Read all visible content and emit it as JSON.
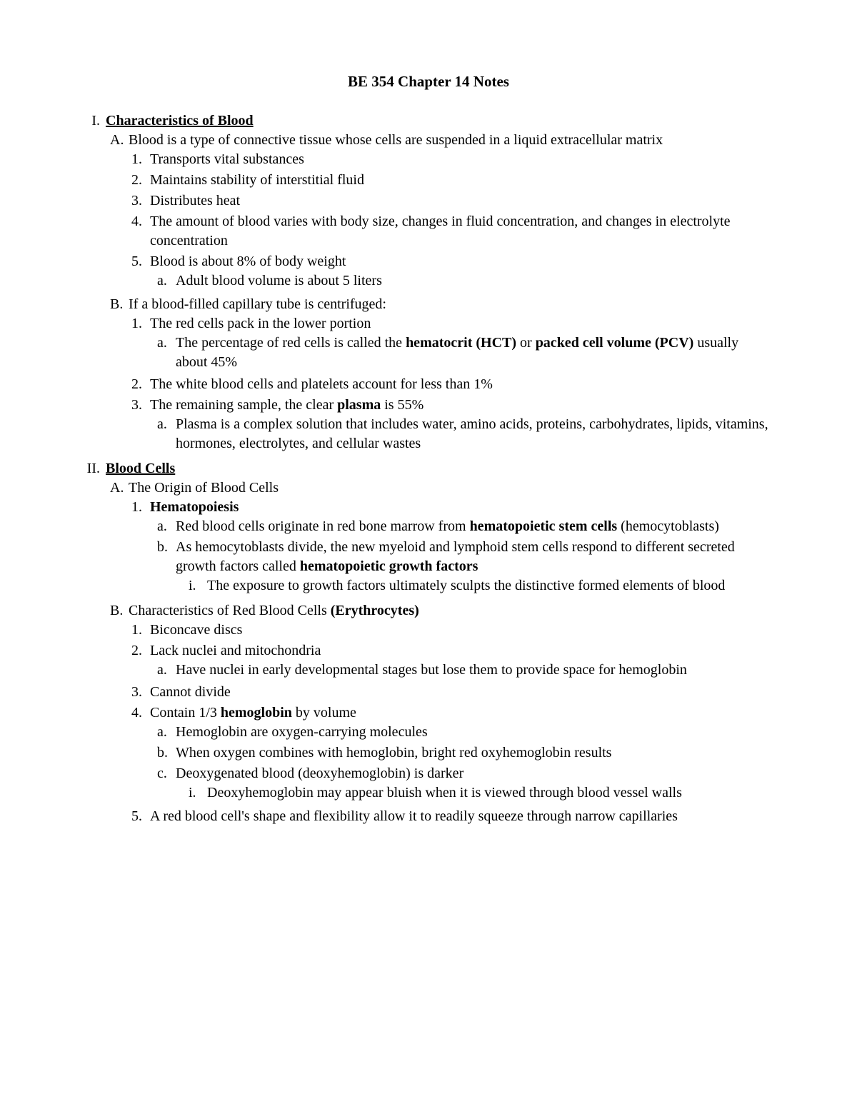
{
  "title": "BE 354 Chapter 14 Notes",
  "sections": {
    "I": {
      "marker": "I.",
      "heading": "Characteristics of Blood",
      "A": {
        "marker": "A.",
        "text": "Blood is a type of connective tissue whose cells are suspended in a liquid extracellular matrix",
        "1": {
          "marker": "1.",
          "text": "Transports vital substances"
        },
        "2": {
          "marker": "2.",
          "text": "Maintains stability of interstitial fluid"
        },
        "3": {
          "marker": "3.",
          "text": "Distributes heat"
        },
        "4": {
          "marker": "4.",
          "text": "The amount of blood varies with body size, changes in fluid concentration, and changes in electrolyte concentration"
        },
        "5": {
          "marker": "5.",
          "text": "Blood is about 8% of body weight",
          "a": {
            "marker": "a.",
            "text": "Adult blood volume is about 5 liters"
          }
        }
      },
      "B": {
        "marker": "B.",
        "text": "If a blood-filled capillary tube is centrifuged:",
        "1": {
          "marker": "1.",
          "text": "The red cells pack in the lower portion",
          "a": {
            "marker": "a.",
            "pre": "The percentage of red cells is called the ",
            "bold1": "hematocrit (HCT)",
            "mid": " or ",
            "bold2": "packed cell volume (PCV)",
            "post": " usually about 45%"
          }
        },
        "2": {
          "marker": "2.",
          "text": "The white blood cells and platelets account for less than 1%"
        },
        "3": {
          "marker": "3.",
          "pre": "The remaining sample, the clear ",
          "bold": "plasma",
          "post": " is 55%",
          "a": {
            "marker": "a.",
            "text": "Plasma is a complex solution that includes water, amino acids, proteins, carbohydrates, lipids, vitamins, hormones, electrolytes, and cellular wastes"
          }
        }
      }
    },
    "II": {
      "marker": "II.",
      "heading": "Blood Cells",
      "A": {
        "marker": "A.",
        "text": "The Origin of Blood Cells",
        "1": {
          "marker": "1.",
          "bold": "Hematopoiesis",
          "a": {
            "marker": "a.",
            "pre": "Red blood cells originate in red bone marrow from ",
            "bold": "hematopoietic stem cells",
            "post": " (hemocytoblasts)"
          },
          "b": {
            "marker": "b.",
            "pre": "As hemocytoblasts divide, the new myeloid and lymphoid stem cells respond to different secreted growth factors called ",
            "bold": "hematopoietic growth factors",
            "i": {
              "marker": "i.",
              "text": "The exposure to growth factors ultimately sculpts the distinctive formed elements of blood"
            }
          }
        }
      },
      "B": {
        "marker": "B.",
        "pre": "Characteristics of Red Blood Cells ",
        "bold": "(Erythrocytes)",
        "1": {
          "marker": "1.",
          "text": "Biconcave discs"
        },
        "2": {
          "marker": "2.",
          "text": "Lack nuclei and mitochondria",
          "a": {
            "marker": "a.",
            "text": "Have nuclei in early developmental stages but lose them to provide space for hemoglobin"
          }
        },
        "3": {
          "marker": "3.",
          "text": "Cannot divide"
        },
        "4": {
          "marker": "4.",
          "pre": "Contain 1/3 ",
          "bold": "hemoglobin",
          "post": " by volume",
          "a": {
            "marker": "a.",
            "text": "Hemoglobin are oxygen-carrying molecules"
          },
          "b": {
            "marker": "b.",
            "text": "When oxygen combines with hemoglobin, bright red oxyhemoglobin results"
          },
          "c": {
            "marker": "c.",
            "text": "Deoxygenated blood (deoxyhemoglobin) is darker",
            "i": {
              "marker": "i.",
              "text": "Deoxyhemoglobin may appear bluish when it is viewed through blood vessel walls"
            }
          }
        },
        "5": {
          "marker": "5.",
          "text": "A red blood cell's shape and flexibility allow it to readily squeeze through narrow capillaries"
        }
      }
    }
  }
}
